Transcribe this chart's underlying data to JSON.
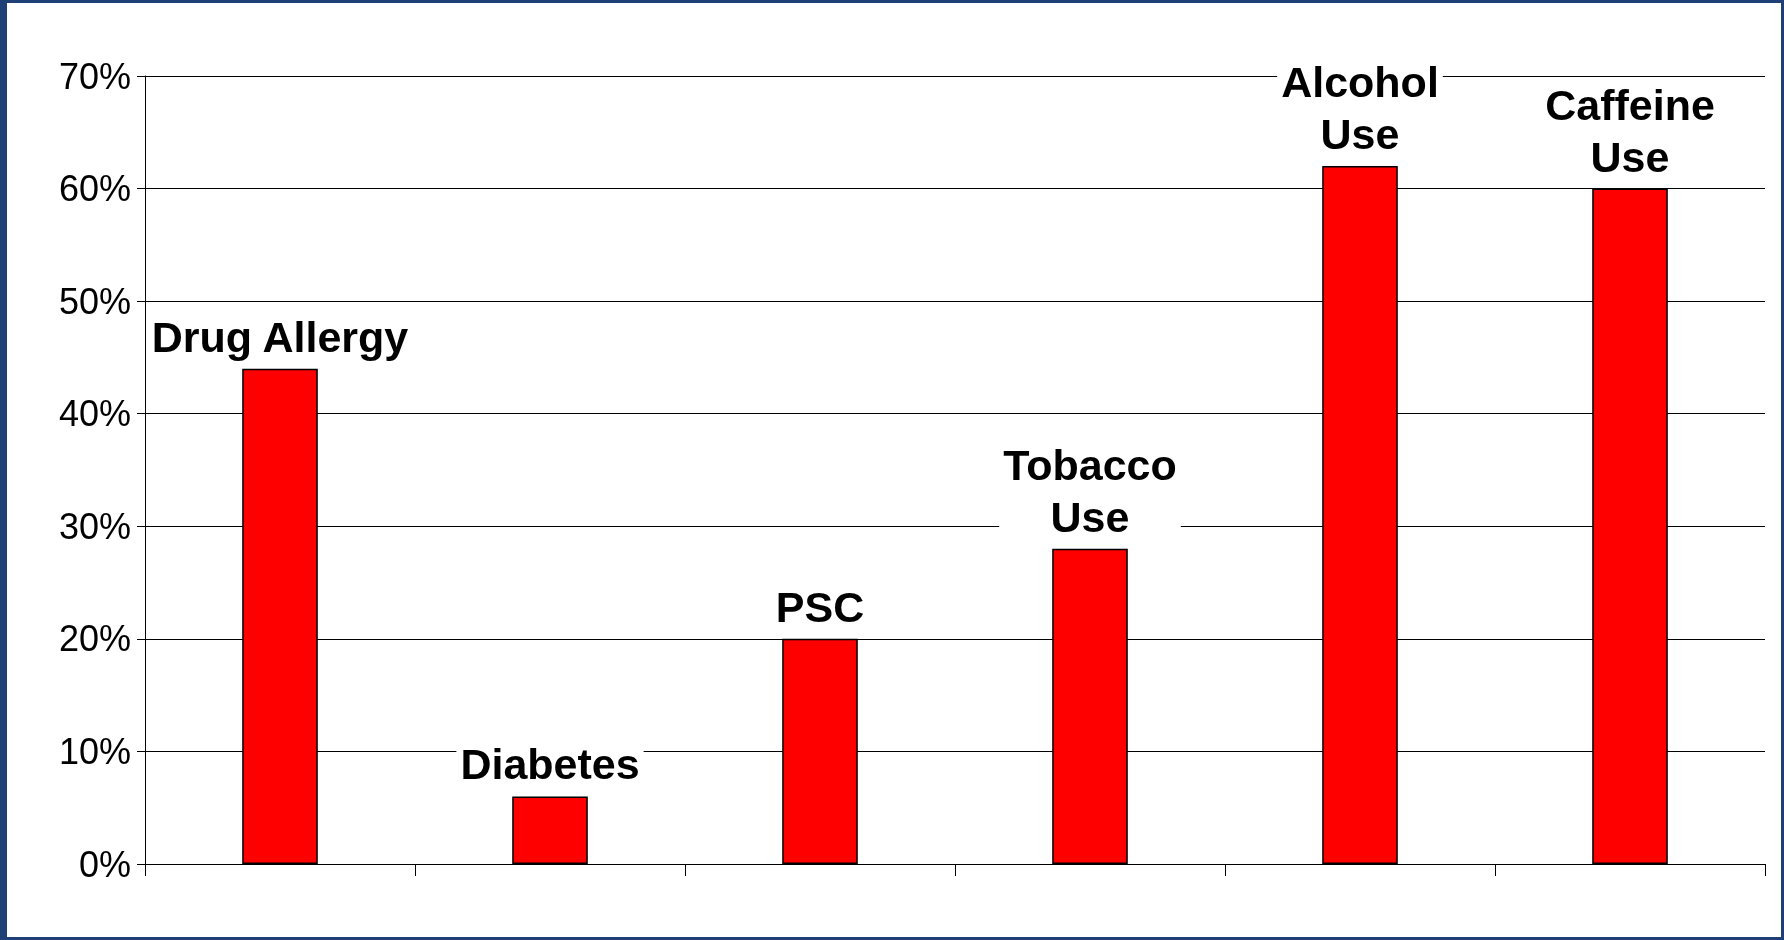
{
  "chart_data": {
    "type": "bar",
    "categories": [
      "Drug Allergy",
      "Diabetes",
      "PSC",
      "Tobacco\nUse",
      "Alcohol\nUse",
      "Caffeine\nUse"
    ],
    "values": [
      44,
      6,
      20,
      28,
      62,
      60
    ],
    "color": "#ff0000",
    "ylim": [
      0,
      70
    ],
    "yticks": [
      {
        "value": 0,
        "label": "0%"
      },
      {
        "value": 10,
        "label": "10%"
      },
      {
        "value": 20,
        "label": "20%"
      },
      {
        "value": 30,
        "label": "30%"
      },
      {
        "value": 40,
        "label": "40%"
      },
      {
        "value": 50,
        "label": "50%"
      },
      {
        "value": 60,
        "label": "60%"
      },
      {
        "value": 70,
        "label": "70%"
      }
    ],
    "grid": "y",
    "tick_labels": "y"
  }
}
